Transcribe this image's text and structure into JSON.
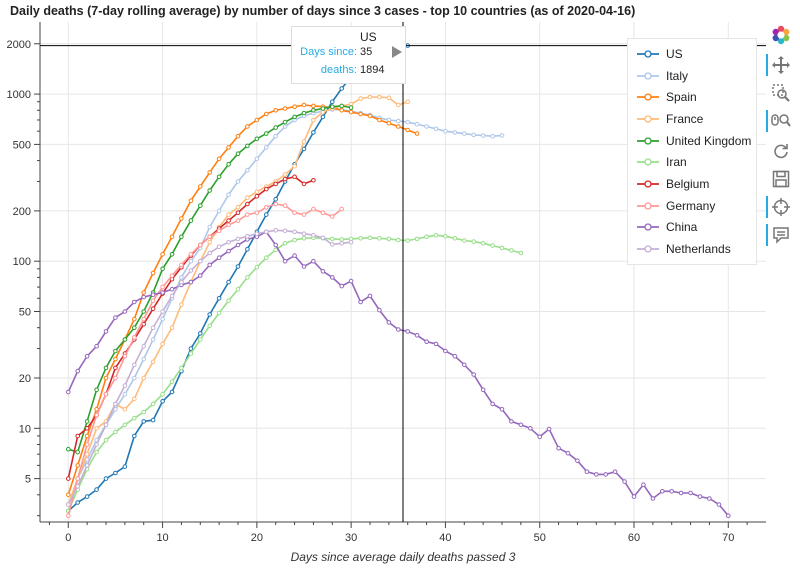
{
  "title": "Daily deaths (7-day rolling average) by number of days since 3 cases - top 10 countries (as of 2020-04-16)",
  "chart_data": {
    "type": "line",
    "title": "Daily deaths (7-day rolling average) by number of days since 3 cases - top 10 countries (as of 2020-04-16)",
    "xlabel": "Days since average daily deaths passed 3",
    "ylabel": "",
    "xlim": [
      -3,
      74
    ],
    "ylim": [
      2.75,
      2700
    ],
    "yscale": "log",
    "grid": true,
    "legend_position": "top-right",
    "x_ticks": [
      0,
      10,
      20,
      30,
      40,
      50,
      60,
      70
    ],
    "x_tick_labels": [
      "0",
      "10",
      "20",
      "30",
      "40",
      "50",
      "60",
      "70"
    ],
    "y_ticks": [
      5,
      10,
      20,
      50,
      100,
      200,
      500,
      1000,
      2000
    ],
    "y_tick_labels": [
      "5",
      "10",
      "20",
      "50",
      "100",
      "200",
      "500",
      "1000",
      "2000"
    ],
    "series": [
      {
        "name": "US",
        "color": "#1f77b4",
        "x": [
          0,
          1,
          2,
          3,
          4,
          5,
          6,
          7,
          8,
          9,
          10,
          11,
          12,
          13,
          14,
          15,
          16,
          17,
          18,
          19,
          20,
          21,
          22,
          23,
          24,
          25,
          26,
          27,
          28,
          29,
          30,
          31,
          32,
          33,
          34,
          35,
          36
        ],
        "y": [
          3.2,
          3.6,
          3.9,
          4.3,
          5.0,
          5.4,
          5.9,
          9.0,
          11.0,
          11.2,
          14.5,
          16.5,
          22,
          30,
          37,
          48,
          60,
          75,
          93,
          118,
          150,
          190,
          235,
          300,
          380,
          470,
          590,
          730,
          900,
          1080,
          1270,
          1450,
          1600,
          1720,
          1800,
          1894,
          1950
        ]
      },
      {
        "name": "Italy",
        "color": "#aec7e8",
        "x": [
          0,
          1,
          2,
          3,
          4,
          5,
          6,
          7,
          8,
          9,
          10,
          11,
          12,
          13,
          14,
          15,
          16,
          17,
          18,
          19,
          20,
          21,
          22,
          23,
          24,
          25,
          26,
          27,
          28,
          29,
          30,
          31,
          32,
          33,
          34,
          35,
          36,
          37,
          38,
          39,
          40,
          41,
          42,
          43,
          44,
          45,
          46
        ],
        "y": [
          3.5,
          5.0,
          6.5,
          8.5,
          10.5,
          13,
          16,
          20,
          26,
          34,
          45,
          60,
          80,
          100,
          120,
          160,
          200,
          250,
          300,
          350,
          410,
          480,
          560,
          640,
          700,
          740,
          770,
          790,
          810,
          805,
          790,
          770,
          750,
          720,
          700,
          690,
          680,
          660,
          640,
          620,
          600,
          590,
          580,
          570,
          565,
          560,
          565
        ]
      },
      {
        "name": "Spain",
        "color": "#ff7f0e",
        "x": [
          0,
          1,
          2,
          3,
          4,
          5,
          6,
          7,
          8,
          9,
          10,
          11,
          12,
          13,
          14,
          15,
          16,
          17,
          18,
          19,
          20,
          21,
          22,
          23,
          24,
          25,
          26,
          27,
          28,
          29,
          30,
          31,
          32,
          33,
          34,
          35,
          36,
          37
        ],
        "y": [
          4,
          6,
          9,
          13,
          20,
          26,
          34,
          45,
          65,
          85,
          110,
          140,
          180,
          230,
          280,
          340,
          410,
          480,
          560,
          640,
          700,
          760,
          800,
          820,
          840,
          860,
          850,
          840,
          830,
          800,
          780,
          760,
          740,
          700,
          670,
          640,
          610,
          580
        ]
      },
      {
        "name": "France",
        "color": "#ffbb78",
        "x": [
          0,
          1,
          2,
          3,
          4,
          5,
          6,
          7,
          8,
          9,
          10,
          11,
          12,
          13,
          14,
          15,
          16,
          17,
          18,
          19,
          20,
          21,
          22,
          23,
          24,
          25,
          26,
          27,
          28,
          29,
          30,
          31,
          32,
          33,
          34,
          35,
          36
        ],
        "y": [
          3.5,
          5,
          7,
          10,
          11,
          14,
          13,
          15,
          20,
          25,
          32,
          40,
          55,
          75,
          100,
          130,
          160,
          190,
          210,
          240,
          260,
          280,
          300,
          330,
          370,
          520,
          700,
          780,
          820,
          850,
          870,
          940,
          960,
          960,
          950,
          860,
          900
        ]
      },
      {
        "name": "United Kingdom",
        "color": "#2ca02c",
        "x": [
          0,
          1,
          2,
          3,
          4,
          5,
          6,
          7,
          8,
          9,
          10,
          11,
          12,
          13,
          14,
          15,
          16,
          17,
          18,
          19,
          20,
          21,
          22,
          23,
          24,
          25,
          26,
          27,
          28,
          29,
          30
        ],
        "y": [
          7.5,
          7.2,
          11,
          17,
          23,
          29,
          34,
          40,
          50,
          65,
          90,
          110,
          140,
          175,
          215,
          265,
          320,
          380,
          440,
          490,
          540,
          580,
          630,
          680,
          730,
          770,
          800,
          820,
          840,
          850,
          830
        ]
      },
      {
        "name": "Iran",
        "color": "#98df8a",
        "x": [
          0,
          1,
          2,
          3,
          4,
          5,
          6,
          7,
          8,
          9,
          10,
          11,
          12,
          13,
          14,
          15,
          16,
          17,
          18,
          19,
          20,
          21,
          22,
          23,
          24,
          25,
          26,
          27,
          28,
          29,
          30,
          31,
          32,
          33,
          34,
          35,
          36,
          37,
          38,
          39,
          40,
          41,
          42,
          43,
          44,
          45,
          46,
          47,
          48
        ],
        "y": [
          3.2,
          4.3,
          5.7,
          7.2,
          8.5,
          9.5,
          10.5,
          11.5,
          12.5,
          14,
          16,
          19,
          23,
          28,
          34,
          41,
          49,
          58,
          68,
          80,
          92,
          105,
          117,
          128,
          134,
          137,
          138,
          137,
          136,
          135,
          136,
          137,
          138,
          137,
          136,
          134,
          133,
          136,
          140,
          143,
          141,
          137,
          133,
          131,
          128,
          124,
          120,
          116,
          112
        ]
      },
      {
        "name": "Belgium",
        "color": "#d62728",
        "x": [
          0,
          1,
          2,
          3,
          4,
          5,
          6,
          7,
          8,
          9,
          10,
          11,
          12,
          13,
          14,
          15,
          16,
          17,
          18,
          19,
          20,
          21,
          22,
          23,
          24,
          25,
          26
        ],
        "y": [
          5,
          9,
          10,
          12,
          16,
          23,
          28,
          34,
          42,
          52,
          64,
          78,
          92,
          108,
          125,
          140,
          157,
          175,
          195,
          220,
          245,
          270,
          290,
          310,
          320,
          290,
          305
        ]
      },
      {
        "name": "Germany",
        "color": "#ff9896",
        "x": [
          0,
          1,
          2,
          3,
          4,
          5,
          6,
          7,
          8,
          9,
          10,
          11,
          12,
          13,
          14,
          15,
          16,
          17,
          18,
          19,
          20,
          21,
          22,
          23,
          24,
          25,
          26,
          27,
          28,
          29
        ],
        "y": [
          3,
          5,
          8,
          12,
          16,
          20,
          27,
          35,
          45,
          58,
          70,
          82,
          95,
          110,
          125,
          140,
          152,
          165,
          175,
          190,
          195,
          210,
          220,
          215,
          195,
          190,
          205,
          195,
          185,
          205
        ]
      },
      {
        "name": "China",
        "color": "#9467bd",
        "x": [
          0,
          1,
          2,
          3,
          4,
          5,
          6,
          7,
          8,
          9,
          10,
          11,
          12,
          13,
          14,
          15,
          16,
          17,
          18,
          19,
          20,
          21,
          22,
          23,
          24,
          25,
          26,
          27,
          28,
          29,
          30,
          31,
          32,
          33,
          34,
          35,
          36,
          37,
          38,
          39,
          40,
          41,
          42,
          43,
          44,
          45,
          46,
          47,
          48,
          49,
          50,
          51,
          52,
          53,
          54,
          55,
          56,
          57,
          58,
          59,
          60,
          61,
          62,
          63,
          64,
          65,
          66,
          67,
          68,
          69,
          70
        ],
        "y": [
          16.5,
          22,
          27,
          31,
          38,
          46,
          50,
          57,
          61,
          63,
          65,
          68,
          72,
          75,
          82,
          95,
          105,
          115,
          125,
          135,
          140,
          150,
          125,
          100,
          108,
          93,
          100,
          87,
          80,
          71,
          76,
          57,
          62,
          51,
          43,
          39,
          38,
          36,
          33,
          32,
          29,
          27,
          24,
          21,
          17,
          14,
          13,
          11,
          10.5,
          10,
          8.9,
          9.9,
          7.6,
          7.1,
          6.4,
          5.5,
          5.3,
          5.3,
          5.5,
          4.8,
          3.9,
          4.6,
          3.8,
          4.2,
          4.2,
          4.1,
          4.1,
          3.9,
          3.8,
          3.5,
          3.0
        ]
      },
      {
        "name": "Netherlands",
        "color": "#c5b0d5",
        "x": [
          0,
          1,
          2,
          3,
          4,
          5,
          6,
          7,
          8,
          9,
          10,
          11,
          12,
          13,
          14,
          15,
          16,
          17,
          18,
          19,
          20,
          21,
          22,
          23,
          24,
          25,
          26,
          27,
          28,
          29,
          30
        ],
        "y": [
          3.5,
          4.5,
          6,
          8,
          10.5,
          14,
          18,
          24,
          31,
          40,
          50,
          62,
          75,
          88,
          100,
          112,
          122,
          130,
          136,
          141,
          146,
          150,
          153,
          152,
          150,
          146,
          143,
          138,
          126,
          128,
          130
        ]
      }
    ]
  },
  "tooltip": {
    "title": "US",
    "row1_label": "Days since:",
    "row1_value": "35",
    "row2_label": "deaths:",
    "row2_value": "1894"
  },
  "crosshair": {
    "x": 35.5,
    "y": 1950
  },
  "toolbar": [
    {
      "icon": "bokeh-logo-icon",
      "active": false
    },
    {
      "icon": "pan-icon",
      "active": true
    },
    {
      "icon": "box-zoom-icon",
      "active": false
    },
    {
      "icon": "wheel-zoom-icon",
      "active": true
    },
    {
      "icon": "reset-icon",
      "active": false
    },
    {
      "icon": "save-icon",
      "active": false
    },
    {
      "icon": "crosshair-icon",
      "active": true
    },
    {
      "icon": "hover-icon",
      "active": true
    }
  ]
}
